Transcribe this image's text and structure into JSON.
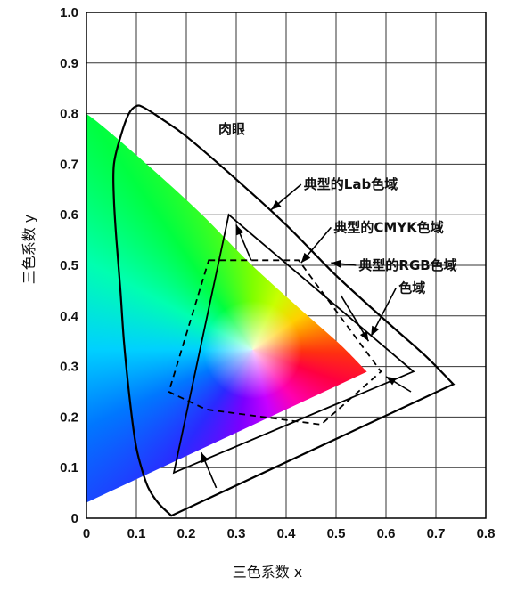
{
  "chart_data": {
    "type": "area",
    "title": "",
    "xlabel": "三色系数 x",
    "ylabel": "三色系数 y",
    "xlim": [
      0,
      0.8
    ],
    "ylim": [
      0,
      1.0
    ],
    "grid": true,
    "x_ticks": [
      "0",
      "0.1",
      "0.2",
      "0.3",
      "0.4",
      "0.5",
      "0.6",
      "0.7",
      "0.8"
    ],
    "y_ticks": [
      "0",
      "0.1",
      "0.2",
      "0.3",
      "0.4",
      "0.5",
      "0.6",
      "0.7",
      "0.8",
      "0.9",
      "1.0"
    ],
    "locus": {
      "label": "肉眼",
      "points": [
        [
          0.17,
          0.005
        ],
        [
          0.144,
          0.03
        ],
        [
          0.124,
          0.06
        ],
        [
          0.11,
          0.1
        ],
        [
          0.098,
          0.15
        ],
        [
          0.085,
          0.25
        ],
        [
          0.075,
          0.35
        ],
        [
          0.068,
          0.45
        ],
        [
          0.06,
          0.55
        ],
        [
          0.055,
          0.63
        ],
        [
          0.055,
          0.7
        ],
        [
          0.07,
          0.76
        ],
        [
          0.085,
          0.8
        ],
        [
          0.1,
          0.815
        ],
        [
          0.115,
          0.812
        ],
        [
          0.15,
          0.79
        ],
        [
          0.2,
          0.755
        ],
        [
          0.3,
          0.67
        ],
        [
          0.4,
          0.58
        ],
        [
          0.5,
          0.48
        ],
        [
          0.6,
          0.39
        ],
        [
          0.68,
          0.32
        ],
        [
          0.735,
          0.265
        ],
        [
          0.17,
          0.005
        ]
      ]
    },
    "gamuts": [
      {
        "name": "典型的CMYK色域",
        "style": "dashed",
        "points": [
          [
            0.245,
            0.51
          ],
          [
            0.425,
            0.51
          ],
          [
            0.59,
            0.29
          ],
          [
            0.47,
            0.185
          ],
          [
            0.24,
            0.215
          ],
          [
            0.165,
            0.25
          ]
        ]
      },
      {
        "name": "典型的RGB色域",
        "style": "solid",
        "points": [
          [
            0.285,
            0.6
          ],
          [
            0.655,
            0.29
          ],
          [
            0.175,
            0.09
          ]
        ]
      }
    ],
    "annotations": [
      {
        "id": "lab",
        "text": "典型的Lab色域",
        "anchor": [
          0.43,
          0.66
        ],
        "target": [
          0.37,
          0.61
        ]
      },
      {
        "id": "cmyk",
        "text": "典型的CMYK色域",
        "anchor": [
          0.49,
          0.575
        ],
        "target": [
          0.43,
          0.505
        ]
      },
      {
        "id": "rgb",
        "text": "典型的RGB色域",
        "anchor": [
          0.54,
          0.5
        ],
        "target": [
          0.49,
          0.505
        ]
      },
      {
        "id": "rgb2",
        "text": "色域",
        "anchor": [
          0.62,
          0.455
        ],
        "target": [
          0.57,
          0.36
        ]
      }
    ],
    "inner_arrows": [
      {
        "from": [
          0.33,
          0.51
        ],
        "to": [
          0.3,
          0.58
        ]
      },
      {
        "from": [
          0.26,
          0.06
        ],
        "to": [
          0.23,
          0.13
        ]
      },
      {
        "from": [
          0.51,
          0.44
        ],
        "to": [
          0.565,
          0.35
        ]
      },
      {
        "from": [
          0.65,
          0.25
        ],
        "to": [
          0.6,
          0.28
        ]
      }
    ],
    "plot_labels": {
      "eye": "肉眼"
    }
  }
}
